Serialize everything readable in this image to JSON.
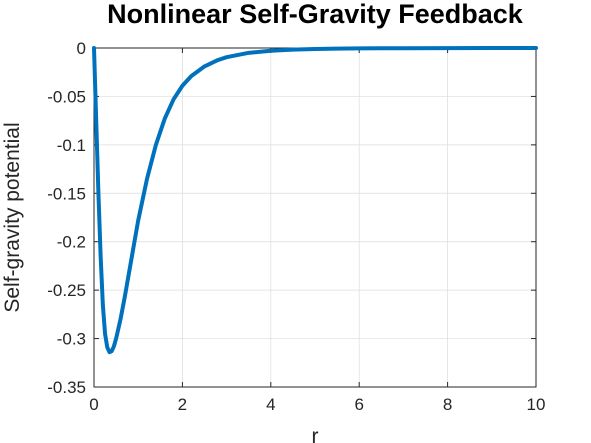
{
  "chart_data": {
    "type": "line",
    "title": "Nonlinear Self-Gravity Feedback",
    "xlabel": "r",
    "ylabel": "Self-gravity potential",
    "xlim": [
      0,
      10
    ],
    "ylim": [
      -0.35,
      0
    ],
    "xticks": [
      0,
      2,
      4,
      6,
      8,
      10
    ],
    "yticks": [
      0,
      -0.05,
      -0.1,
      -0.15,
      -0.2,
      -0.25,
      -0.3,
      -0.35
    ],
    "xtick_labels": [
      "0",
      "2",
      "4",
      "6",
      "8",
      "10"
    ],
    "ytick_labels": [
      "0",
      "-0.05",
      "-0.1",
      "-0.15",
      "-0.2",
      "-0.25",
      "-0.3",
      "-0.35"
    ],
    "grid": true,
    "series": [
      {
        "color": "#0072bd",
        "x": [
          0,
          0.05,
          0.1,
          0.15,
          0.2,
          0.25,
          0.3,
          0.35,
          0.4,
          0.45,
          0.5,
          0.6,
          0.7,
          0.8,
          0.9,
          1.0,
          1.2,
          1.4,
          1.6,
          1.8,
          2.0,
          2.2,
          2.5,
          2.8,
          3.0,
          3.5,
          4.0,
          4.5,
          5.0,
          5.5,
          6.0,
          7.0,
          8.0,
          9.0,
          10.0
        ],
        "y": [
          0,
          -0.075,
          -0.15,
          -0.215,
          -0.265,
          -0.295,
          -0.309,
          -0.314,
          -0.313,
          -0.308,
          -0.3,
          -0.28,
          -0.256,
          -0.23,
          -0.204,
          -0.178,
          -0.135,
          -0.1,
          -0.073,
          -0.053,
          -0.039,
          -0.029,
          -0.019,
          -0.0125,
          -0.0095,
          -0.005,
          -0.0028,
          -0.0017,
          -0.001,
          -0.0006,
          -0.0004,
          -0.0002,
          -0.0001,
          -5e-05,
          0
        ]
      }
    ]
  }
}
